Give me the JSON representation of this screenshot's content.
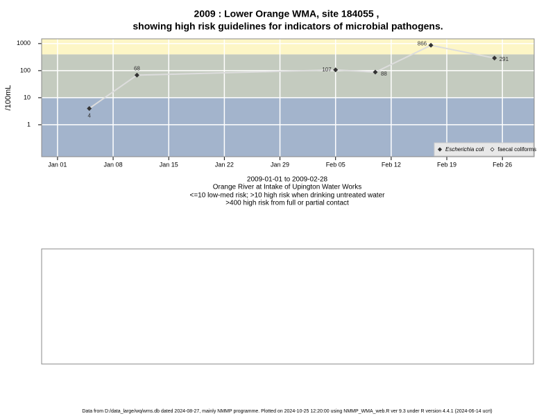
{
  "chart_data": {
    "type": "line",
    "title": "2009 : Lower Orange WMA, site 184055 ,",
    "title_line2": "showing high risk guidelines for indicators of microbial pathogens.",
    "y_label": "/100mL",
    "subtitle_lines": [
      "2009-01-01 to 2009-02-28",
      "Orange River at Intake of Upington Water Works",
      "<=10 low-med risk; >10 high risk when drinking untreated water",
      ">400 high risk from full or partial contact"
    ],
    "footer": "Data from D:/data_large/wq/wms.db dated 2024-08-27, mainly NMMP programme. Plotted on 2024-10-25 12:20:00 using NMMP_WMA_web.R ver 9.3 under R version 4.4.1 (2024-06-14 ucrt)",
    "x": [
      "2009-01-05",
      "2009-01-11",
      "2009-02-05",
      "2009-02-10",
      "2009-02-17",
      "2009-02-25"
    ],
    "series": [
      {
        "name": "Escherichia coli",
        "color": "#333333",
        "line_color": "#dddddd",
        "values": [
          4,
          68,
          107,
          88,
          866,
          291
        ]
      },
      {
        "name": "faecal coliforms",
        "color": "#333333",
        "values": [
          null,
          null,
          null,
          null,
          null,
          null
        ]
      }
    ],
    "xlim": [
      "2008-12-30",
      "2009-03-02"
    ],
    "xticks": [
      {
        "value": "2009-01-01",
        "label": "Jan 01"
      },
      {
        "value": "2009-01-08",
        "label": "Jan 08"
      },
      {
        "value": "2009-01-15",
        "label": "Jan 15"
      },
      {
        "value": "2009-01-22",
        "label": "Jan 22"
      },
      {
        "value": "2009-01-29",
        "label": "Jan 29"
      },
      {
        "value": "2009-02-05",
        "label": "Feb 05"
      },
      {
        "value": "2009-02-12",
        "label": "Feb 12"
      },
      {
        "value": "2009-02-19",
        "label": "Feb 19"
      },
      {
        "value": "2009-02-26",
        "label": "Feb 26"
      }
    ],
    "ylim": [
      0.066,
      1500
    ],
    "yticks": [
      1,
      10,
      100,
      1000
    ],
    "log_y": true,
    "grid": true,
    "thresholds": [
      10,
      400
    ],
    "band_colors": [
      "#a3b4cc",
      "#c4cbbf",
      "#fdf6c6"
    ],
    "legend": "bottom-right"
  }
}
